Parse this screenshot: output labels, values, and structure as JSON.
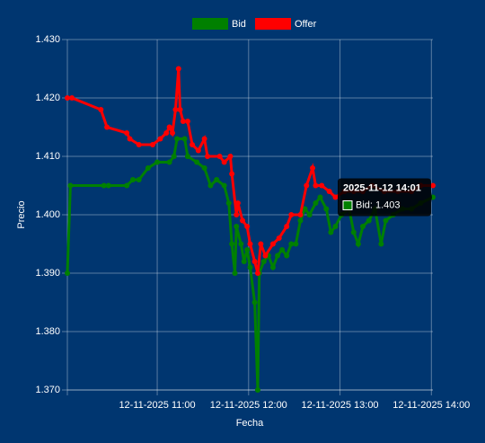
{
  "chart_data": {
    "type": "line",
    "xlabel": "Fecha",
    "ylabel": "Precio",
    "xlim": [
      "2025-11-12 10:01",
      "2025-11-12 14:01"
    ],
    "xticks": [
      {
        "value": "2025-11-12 11:00",
        "label": "12-11-2025 11:00"
      },
      {
        "value": "2025-11-12 12:00",
        "label": "12-11-2025 12:00"
      },
      {
        "value": "2025-11-12 13:00",
        "label": "12-11-2025 13:00"
      },
      {
        "value": "2025-11-12 14:00",
        "label": "12-11-2025 14:00"
      }
    ],
    "ylim": [
      1.37,
      1.43
    ],
    "yticks": [
      {
        "value": 1.37,
        "label": "1.370"
      },
      {
        "value": 1.38,
        "label": "1.380"
      },
      {
        "value": 1.39,
        "label": "1.390"
      },
      {
        "value": 1.4,
        "label": "1.400"
      },
      {
        "value": 1.41,
        "label": "1.410"
      },
      {
        "value": 1.42,
        "label": "1.420"
      },
      {
        "value": 1.43,
        "label": "1.430"
      }
    ],
    "grid": true,
    "legend": "top",
    "series": [
      {
        "name": "Bid",
        "color": "#008000",
        "x": [
          "2025-11-12 10:01",
          "2025-11-12 10:03",
          "2025-11-12 10:25",
          "2025-11-12 10:28",
          "2025-11-12 10:40",
          "2025-11-12 10:44",
          "2025-11-12 10:48",
          "2025-11-12 10:54",
          "2025-11-12 11:00",
          "2025-11-12 11:08",
          "2025-11-12 11:11",
          "2025-11-12 11:13",
          "2025-11-12 11:18",
          "2025-11-12 11:20",
          "2025-11-12 11:26",
          "2025-11-12 11:31",
          "2025-11-12 11:35",
          "2025-11-12 11:39",
          "2025-11-12 11:44",
          "2025-11-12 11:47",
          "2025-11-12 11:49",
          "2025-11-12 11:51",
          "2025-11-12 11:52",
          "2025-11-12 11:55",
          "2025-11-12 11:57",
          "2025-11-12 11:59",
          "2025-11-12 12:01",
          "2025-11-12 12:04",
          "2025-11-12 12:06",
          "2025-11-12 12:07",
          "2025-11-12 12:10",
          "2025-11-12 12:13",
          "2025-11-12 12:16",
          "2025-11-12 12:19",
          "2025-11-12 12:22",
          "2025-11-12 12:25",
          "2025-11-12 12:28",
          "2025-11-12 12:31",
          "2025-11-12 12:34",
          "2025-11-12 12:37",
          "2025-11-12 12:40",
          "2025-11-12 12:44",
          "2025-11-12 12:47",
          "2025-11-12 12:51",
          "2025-11-12 12:54",
          "2025-11-12 12:57",
          "2025-11-12 13:01",
          "2025-11-12 13:06",
          "2025-11-12 13:09",
          "2025-11-12 13:12",
          "2025-11-12 13:15",
          "2025-11-12 13:19",
          "2025-11-12 13:23",
          "2025-11-12 13:27",
          "2025-11-12 13:30",
          "2025-11-12 13:35",
          "2025-11-12 13:41",
          "2025-11-12 13:47",
          "2025-11-12 13:53",
          "2025-11-12 14:01"
        ],
        "values": [
          1.39,
          1.405,
          1.405,
          1.405,
          1.405,
          1.406,
          1.406,
          1.408,
          1.409,
          1.409,
          1.41,
          1.413,
          1.413,
          1.41,
          1.409,
          1.408,
          1.405,
          1.406,
          1.405,
          1.402,
          1.395,
          1.39,
          1.398,
          1.395,
          1.392,
          1.394,
          1.391,
          1.385,
          1.37,
          1.39,
          1.392,
          1.393,
          1.391,
          1.393,
          1.394,
          1.393,
          1.395,
          1.395,
          1.399,
          1.401,
          1.4,
          1.402,
          1.403,
          1.401,
          1.397,
          1.398,
          1.4,
          1.401,
          1.397,
          1.395,
          1.398,
          1.399,
          1.401,
          1.395,
          1.399,
          1.4,
          1.401,
          1.401,
          1.402,
          1.403
        ]
      },
      {
        "name": "Offer",
        "color": "#ff0000",
        "x": [
          "2025-11-12 10:01",
          "2025-11-12 10:04",
          "2025-11-12 10:23",
          "2025-11-12 10:27",
          "2025-11-12 10:40",
          "2025-11-12 10:42",
          "2025-11-12 10:48",
          "2025-11-12 10:57",
          "2025-11-12 11:02",
          "2025-11-12 11:06",
          "2025-11-12 11:08",
          "2025-11-12 11:10",
          "2025-11-12 11:12",
          "2025-11-12 11:14",
          "2025-11-12 11:15",
          "2025-11-12 11:17",
          "2025-11-12 11:20",
          "2025-11-12 11:23",
          "2025-11-12 11:27",
          "2025-11-12 11:31",
          "2025-11-12 11:33",
          "2025-11-12 11:41",
          "2025-11-12 11:44",
          "2025-11-12 11:48",
          "2025-11-12 11:49",
          "2025-11-12 11:52",
          "2025-11-12 11:53",
          "2025-11-12 11:56",
          "2025-11-12 11:59",
          "2025-11-12 12:01",
          "2025-11-12 12:04",
          "2025-11-12 12:06",
          "2025-11-12 12:08",
          "2025-11-12 12:11",
          "2025-11-12 12:16",
          "2025-11-12 12:20",
          "2025-11-12 12:25",
          "2025-11-12 12:28",
          "2025-11-12 12:34",
          "2025-11-12 12:38",
          "2025-11-12 12:42",
          "2025-11-12 12:44",
          "2025-11-12 12:48",
          "2025-11-12 12:53",
          "2025-11-12 12:57",
          "2025-11-12 13:03",
          "2025-11-12 13:09",
          "2025-11-12 13:15",
          "2025-11-12 13:21",
          "2025-11-12 13:29",
          "2025-11-12 13:38",
          "2025-11-12 13:47",
          "2025-11-12 13:53",
          "2025-11-12 14:01"
        ],
        "values": [
          1.42,
          1.42,
          1.418,
          1.415,
          1.414,
          1.413,
          1.412,
          1.412,
          1.413,
          1.414,
          1.415,
          1.414,
          1.418,
          1.425,
          1.418,
          1.416,
          1.416,
          1.412,
          1.411,
          1.413,
          1.41,
          1.41,
          1.409,
          1.41,
          1.407,
          1.4,
          1.402,
          1.399,
          1.398,
          1.395,
          1.392,
          1.39,
          1.395,
          1.393,
          1.395,
          1.396,
          1.398,
          1.4,
          1.4,
          1.405,
          1.408,
          1.405,
          1.405,
          1.404,
          1.403,
          1.404,
          1.404,
          1.404,
          1.405,
          1.404,
          1.404,
          1.404,
          1.405,
          1.405
        ]
      }
    ],
    "tooltip": {
      "title": "2025-11-12 14:01",
      "label": "Bid: 1.403",
      "series": 0,
      "index": 59
    }
  }
}
